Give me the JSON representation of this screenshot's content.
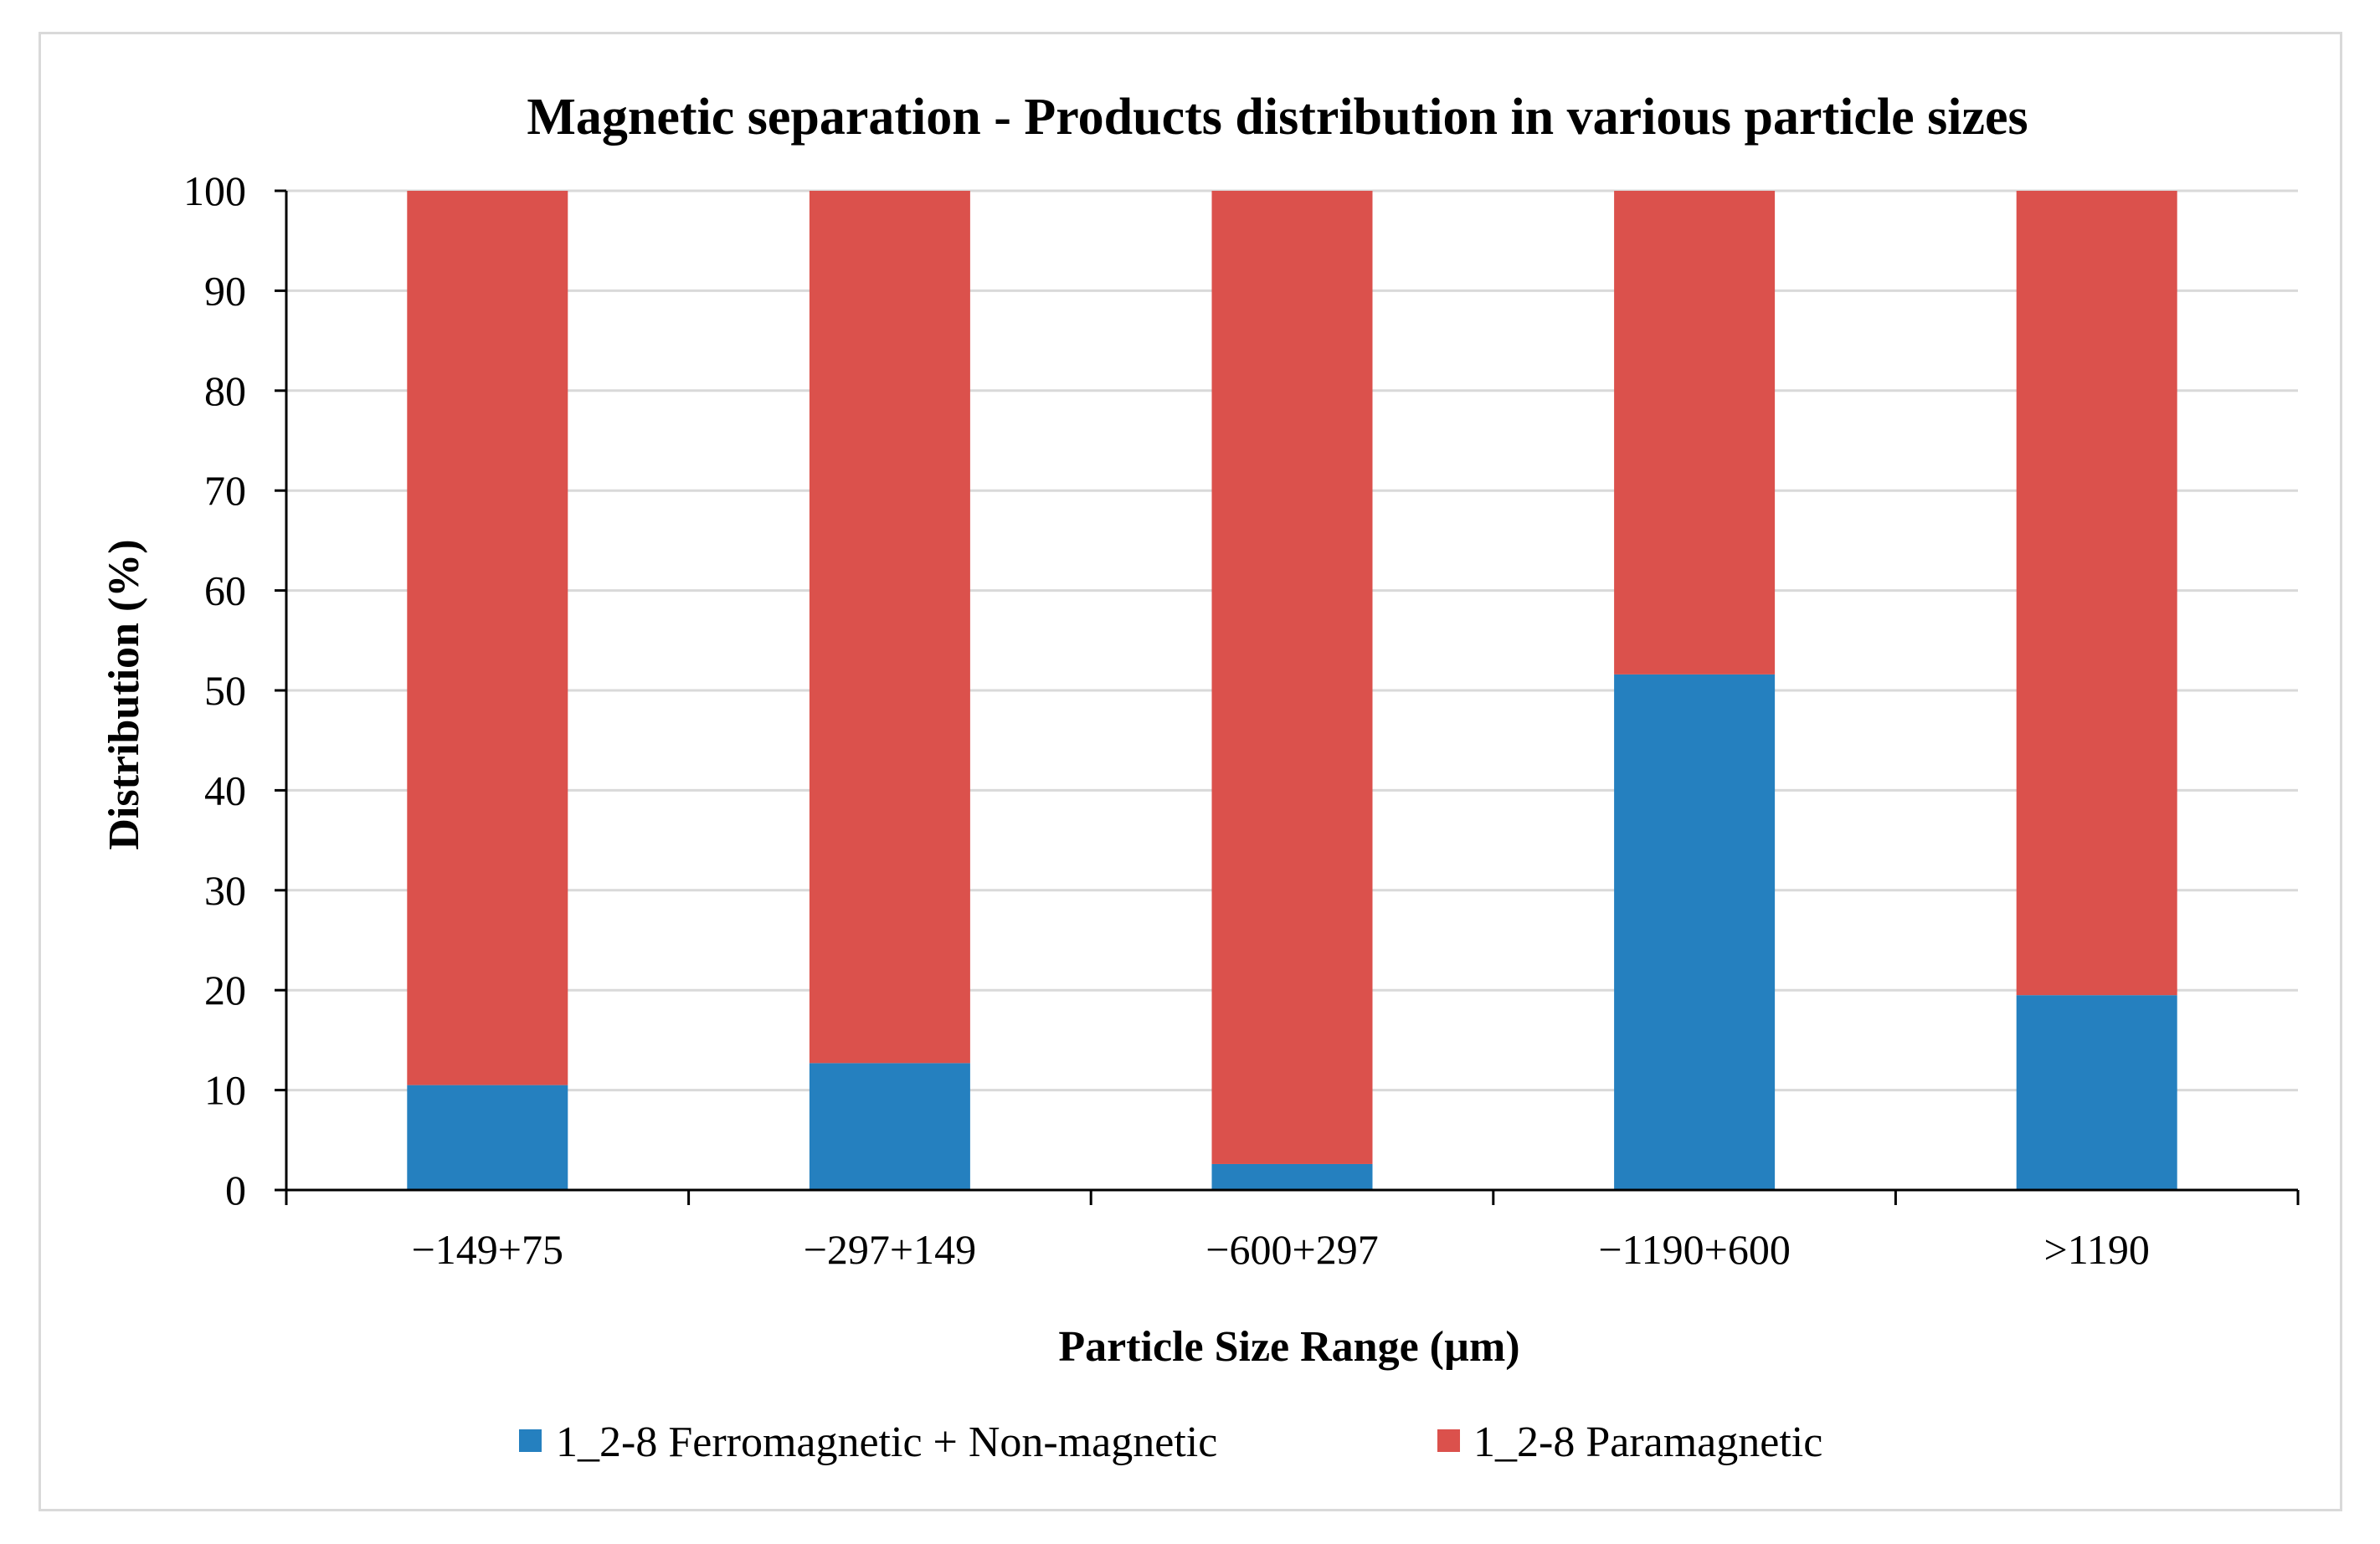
{
  "chart_data": {
    "type": "bar",
    "stacked": true,
    "title": "Magnetic separation - Products distribution in various particle sizes",
    "xlabel": "Particle Size Range (µm)",
    "ylabel": "Distribution (%)",
    "ylim": [
      0,
      100
    ],
    "yticks": [
      "0",
      "10",
      "20",
      "30",
      "40",
      "50",
      "60",
      "70",
      "80",
      "90",
      "100"
    ],
    "categories": [
      "−149+75",
      "−297+149",
      "−600+297",
      "−1190+600",
      ">1190"
    ],
    "grid": true,
    "legend_position": "bottom",
    "series": [
      {
        "name": "1_2-8 Ferromagnetic + Non-magnetic",
        "color": "#2580bf",
        "values": [
          10.5,
          12.7,
          2.6,
          51.6,
          19.5
        ]
      },
      {
        "name": "1_2-8 Paramagnetic",
        "color": "#db514c",
        "values": [
          89.5,
          87.3,
          97.4,
          48.4,
          80.5
        ]
      }
    ]
  }
}
